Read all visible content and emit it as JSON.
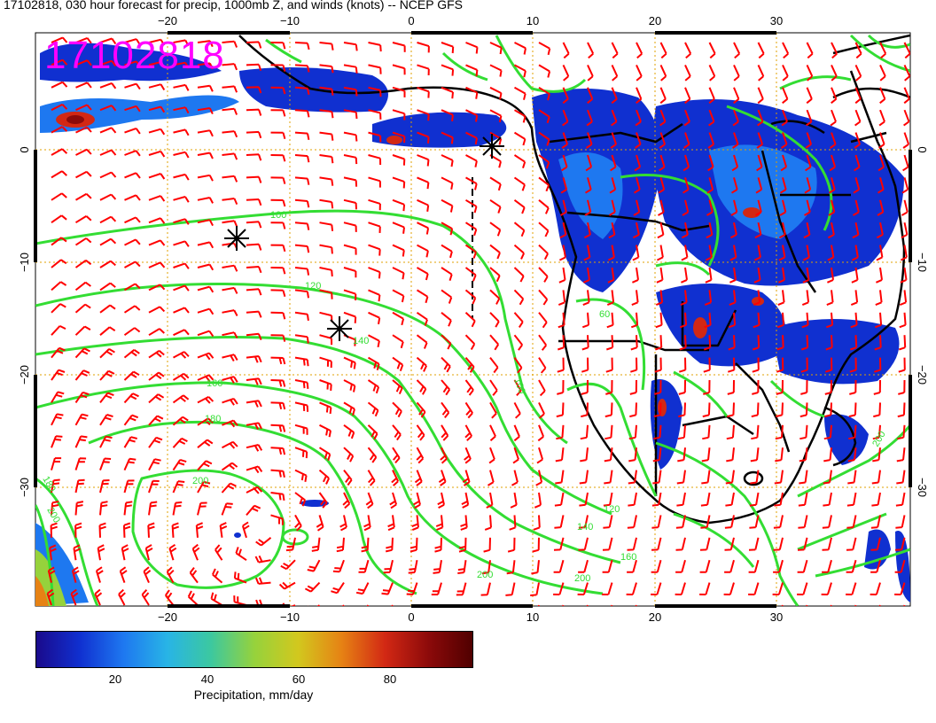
{
  "title": "17102818, 030 hour forecast for precip, 1000mb Z, and winds (knots) -- NCEP GFS",
  "stamp": "17102818",
  "axes": {
    "x_ticks": [
      "−20",
      "−10",
      "0",
      "10",
      "20",
      "30"
    ],
    "y_ticks": [
      "0",
      "−10",
      "−20",
      "−30"
    ]
  },
  "contour_labels": [
    "100",
    "120",
    "140",
    "160",
    "180",
    "200",
    "60",
    "100",
    "120",
    "140",
    "160",
    "180",
    "200",
    "200",
    "200",
    "200"
  ],
  "colorbar": {
    "title": "Precipitation, mm/day",
    "ticks": [
      "20",
      "40",
      "60",
      "80"
    ],
    "colors": [
      "#1a0a8c",
      "#1030d0",
      "#1e78f0",
      "#28b4e6",
      "#3cc8a0",
      "#96d23c",
      "#d2c81e",
      "#e68214",
      "#d22814",
      "#8c0a0a",
      "#500000"
    ]
  },
  "colors": {
    "contour": "#33dd33",
    "barb": "#ff0000",
    "coast": "#000000",
    "grid": "#e0a000"
  }
}
